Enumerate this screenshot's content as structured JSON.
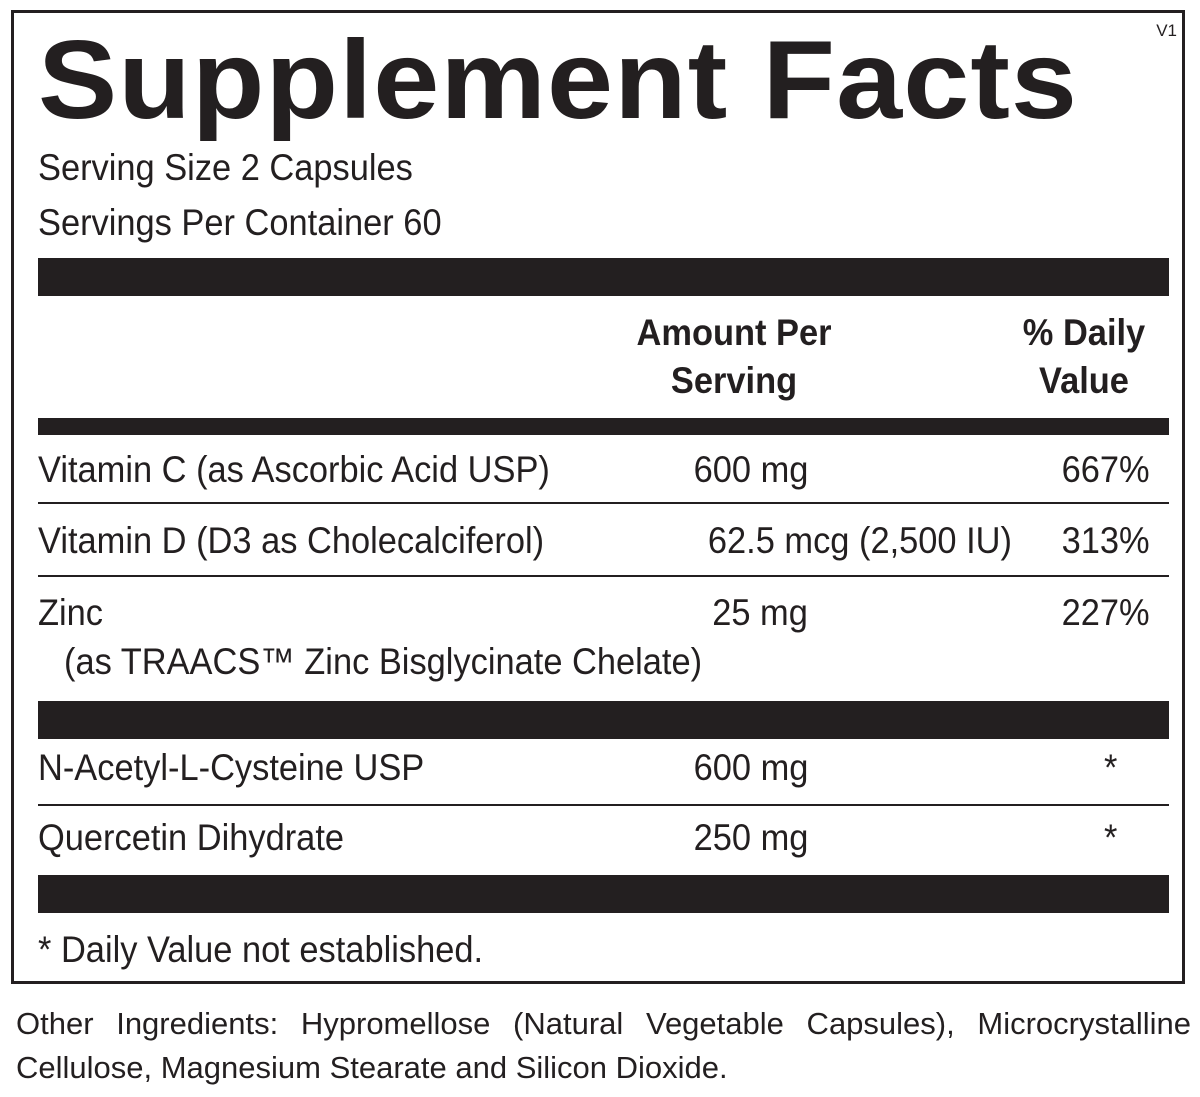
{
  "panel": {
    "title": "Supplement Facts",
    "version": "V1",
    "serving_size": "Serving Size 2 Capsules",
    "servings_per_container": "Servings Per Container  60"
  },
  "columns": {
    "amount_line1": "Amount Per",
    "amount_line2": "Serving",
    "dv_line1": "% Daily",
    "dv_line2": "Value"
  },
  "nutrients": [
    {
      "name": "Vitamin C (as Ascorbic Acid USP)",
      "amount": "600 mg",
      "dv": "667%"
    },
    {
      "name": "Vitamin D (D3 as Cholecalciferol)",
      "amount": "62.5 mcg (2,500 IU)",
      "dv": "313%"
    },
    {
      "name": "Zinc",
      "sub": "(as TRAACS™ Zinc Bisglycinate Chelate)",
      "amount": "25 mg",
      "dv": "227%"
    }
  ],
  "other_items": [
    {
      "name": "N-Acetyl-L-Cysteine USP",
      "amount": "600 mg",
      "dv": "*"
    },
    {
      "name": "Quercetin Dihydrate",
      "amount": "250 mg",
      "dv": "*"
    }
  ],
  "footnote": "* Daily Value not established.",
  "other_ingredients": "Other Ingredients: Hypromellose (Natural Vegetable Capsules), Microcrystalline Cellulose, Magnesium Stearate and Silicon Dioxide."
}
